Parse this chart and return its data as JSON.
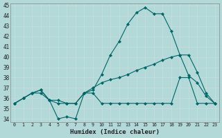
{
  "xlabel": "Humidex (Indice chaleur)",
  "background_color": "#b2d8d8",
  "grid_color": "#d4eded",
  "line_color": "#006666",
  "x_hours": [
    0,
    1,
    2,
    3,
    4,
    5,
    6,
    7,
    8,
    9,
    10,
    11,
    12,
    13,
    14,
    15,
    16,
    17,
    18,
    19,
    20,
    21,
    22,
    23
  ],
  "line_peak_y": [
    35.5,
    36.0,
    36.5,
    36.8,
    35.8,
    34.0,
    34.2,
    34.0,
    36.5,
    36.8,
    38.3,
    40.2,
    41.5,
    43.2,
    44.3,
    44.8,
    44.2,
    44.2,
    42.5,
    40.2,
    38.2,
    37.5,
    36.2,
    35.5
  ],
  "line_mid_y": [
    35.5,
    36.0,
    36.5,
    36.8,
    35.8,
    35.5,
    35.5,
    35.5,
    36.5,
    37.0,
    37.5,
    37.8,
    38.0,
    38.3,
    38.7,
    39.0,
    39.3,
    39.7,
    40.0,
    40.2,
    40.2,
    38.5,
    36.5,
    35.5
  ],
  "line_flat_y": [
    35.5,
    36.0,
    36.5,
    36.5,
    35.8,
    35.8,
    35.5,
    35.5,
    36.5,
    36.5,
    35.5,
    35.5,
    35.5,
    35.5,
    35.5,
    35.5,
    35.5,
    35.5,
    35.5,
    38.0,
    38.0,
    35.5,
    35.5,
    35.5
  ],
  "ylim_min": 34,
  "ylim_max": 45,
  "yticks": [
    34,
    35,
    36,
    37,
    38,
    39,
    40,
    41,
    42,
    43,
    44,
    45
  ],
  "xtick_labels": [
    "0",
    "1",
    "2",
    "3",
    "4",
    "5",
    "6",
    "7",
    "8",
    "9",
    "10",
    "11",
    "12",
    "13",
    "14",
    "15",
    "16",
    "17",
    "18",
    "19",
    "20",
    "21",
    "22",
    "23"
  ]
}
